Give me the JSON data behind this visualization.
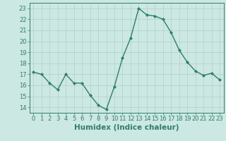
{
  "x": [
    0,
    1,
    2,
    3,
    4,
    5,
    6,
    7,
    8,
    9,
    10,
    11,
    12,
    13,
    14,
    15,
    16,
    17,
    18,
    19,
    20,
    21,
    22,
    23
  ],
  "y": [
    17.2,
    17.0,
    16.2,
    15.6,
    17.0,
    16.2,
    16.2,
    15.1,
    14.2,
    13.8,
    15.9,
    18.5,
    20.3,
    23.0,
    22.4,
    22.3,
    22.0,
    20.8,
    19.2,
    18.1,
    17.3,
    16.9,
    17.1,
    16.5
  ],
  "line_color": "#2e7d6e",
  "marker": "D",
  "marker_size": 2.2,
  "bg_color": "#cce8e2",
  "grid_color_major": "#b0cfc9",
  "grid_color_minor": "#c4ddd8",
  "xlabel": "Humidex (Indice chaleur)",
  "xlim": [
    -0.5,
    23.5
  ],
  "ylim": [
    13.5,
    23.5
  ],
  "yticks": [
    14,
    15,
    16,
    17,
    18,
    19,
    20,
    21,
    22,
    23
  ],
  "xticks": [
    0,
    1,
    2,
    3,
    4,
    5,
    6,
    7,
    8,
    9,
    10,
    11,
    12,
    13,
    14,
    15,
    16,
    17,
    18,
    19,
    20,
    21,
    22,
    23
  ],
  "tick_color": "#2e7d6e",
  "label_color": "#2e7d6e",
  "spine_color": "#2e7d6e",
  "font_size": 6.0,
  "xlabel_fontsize": 7.5,
  "linewidth": 1.0
}
